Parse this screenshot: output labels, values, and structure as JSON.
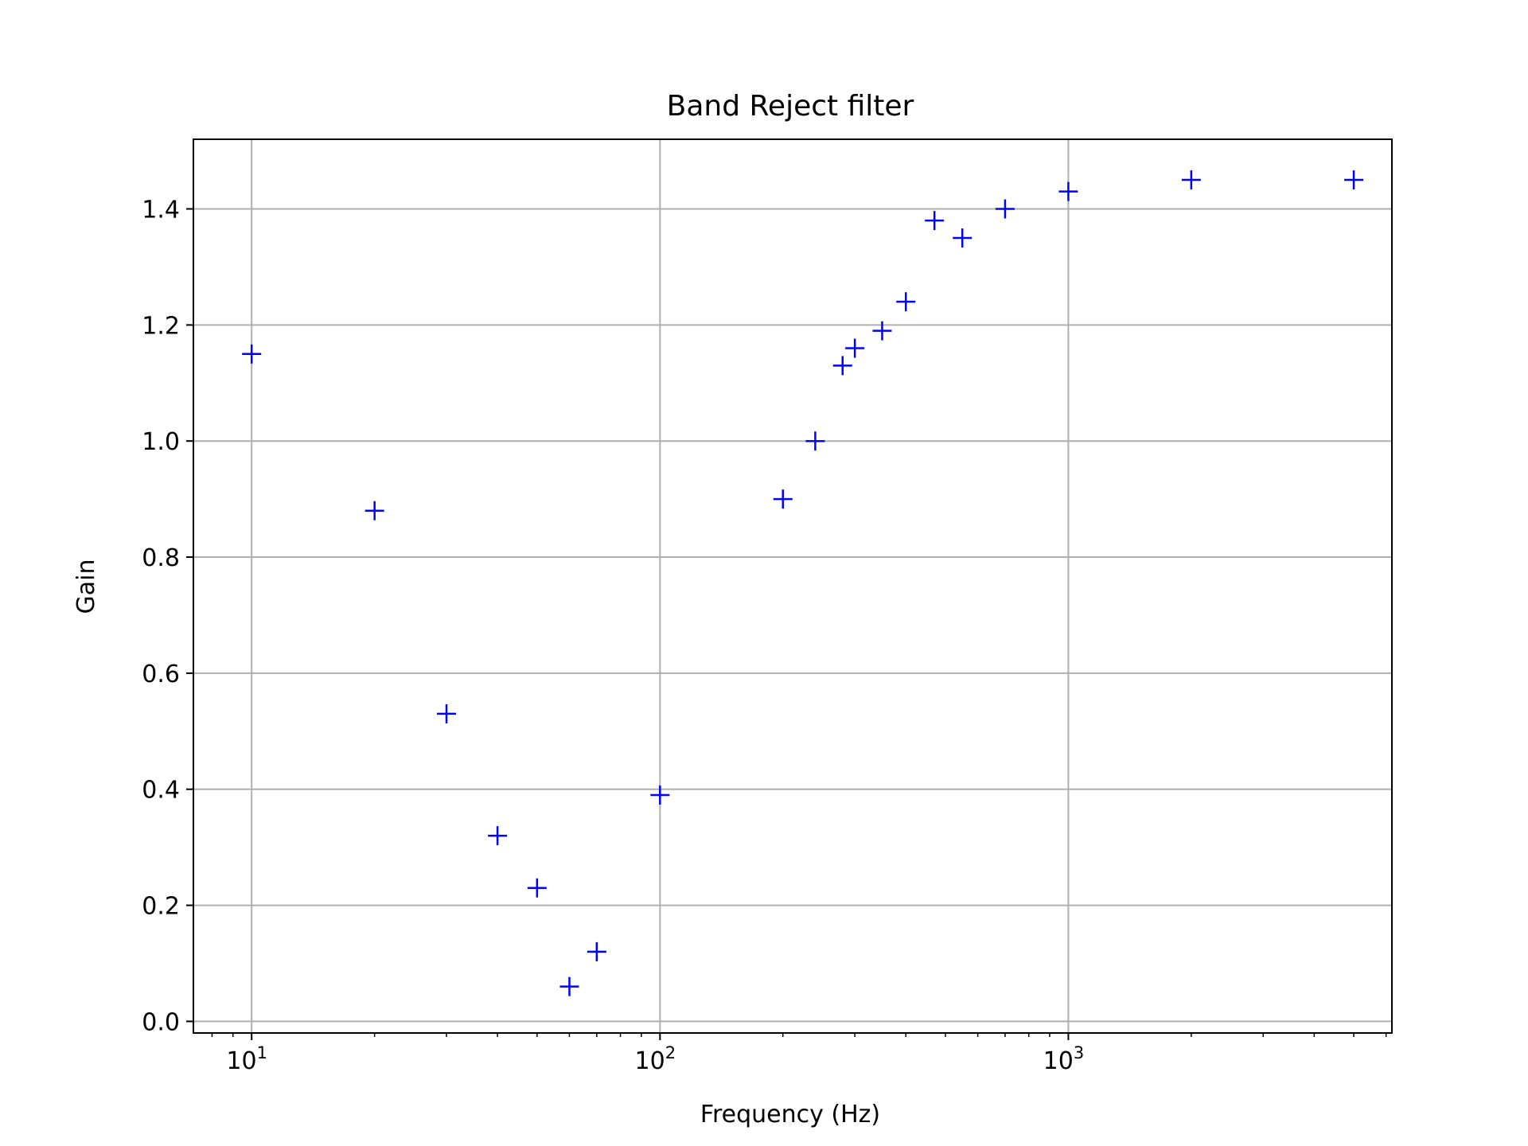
{
  "chart_data": {
    "type": "scatter",
    "title": "Band Reject filter",
    "xlabel": "Frequency (Hz)",
    "ylabel": "Gain",
    "xscale": "log",
    "xlim": [
      7.2,
      6200
    ],
    "ylim": [
      -0.02,
      1.52
    ],
    "grid": true,
    "marker": "+",
    "series": [
      {
        "color": "#0000ff",
        "points": [
          {
            "x": 10,
            "y": 1.15
          },
          {
            "x": 20,
            "y": 0.88
          },
          {
            "x": 30,
            "y": 0.53
          },
          {
            "x": 40,
            "y": 0.32
          },
          {
            "x": 50,
            "y": 0.23
          },
          {
            "x": 60,
            "y": 0.06
          },
          {
            "x": 70,
            "y": 0.12
          },
          {
            "x": 100,
            "y": 0.39
          },
          {
            "x": 200,
            "y": 0.9
          },
          {
            "x": 240,
            "y": 1.0
          },
          {
            "x": 280,
            "y": 1.13
          },
          {
            "x": 300,
            "y": 1.16
          },
          {
            "x": 350,
            "y": 1.19
          },
          {
            "x": 400,
            "y": 1.24
          },
          {
            "x": 470,
            "y": 1.38
          },
          {
            "x": 550,
            "y": 1.35
          },
          {
            "x": 700,
            "y": 1.4
          },
          {
            "x": 1000,
            "y": 1.43
          },
          {
            "x": 2000,
            "y": 1.45
          },
          {
            "x": 5000,
            "y": 1.45
          }
        ]
      }
    ],
    "x_ticks": [
      {
        "value": 10,
        "base": "10",
        "exp": "1"
      },
      {
        "value": 100,
        "base": "10",
        "exp": "2"
      },
      {
        "value": 1000,
        "base": "10",
        "exp": "3"
      }
    ],
    "y_ticks": [
      {
        "value": 0.0,
        "label": "0.0"
      },
      {
        "value": 0.2,
        "label": "0.2"
      },
      {
        "value": 0.4,
        "label": "0.4"
      },
      {
        "value": 0.6,
        "label": "0.6"
      },
      {
        "value": 0.8,
        "label": "0.8"
      },
      {
        "value": 1.0,
        "label": "1.0"
      },
      {
        "value": 1.2,
        "label": "1.2"
      },
      {
        "value": 1.4,
        "label": "1.4"
      }
    ],
    "colors": {
      "grid": "#b0b0b0",
      "axes": "#000000",
      "marker": "#0000ff"
    }
  }
}
